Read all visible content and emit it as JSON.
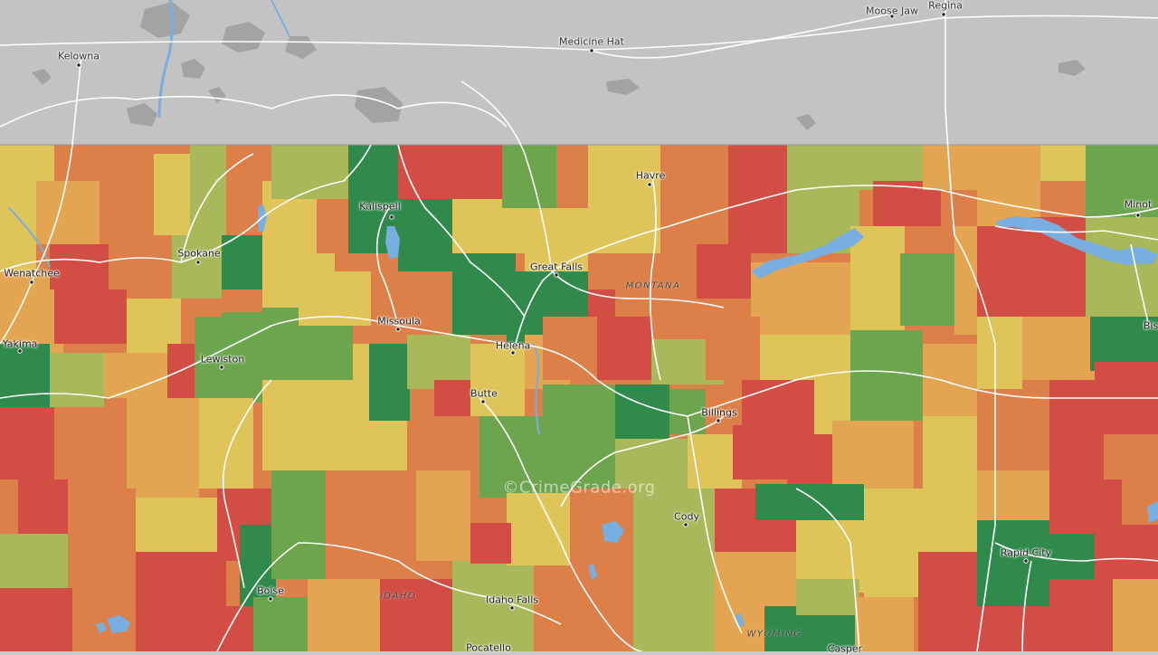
{
  "map": {
    "colors": {
      "canada": "#c3c3c3",
      "lake_canada": "#a3a3a3",
      "water": "#78aee0",
      "road": "#ffffff",
      "grade_a": "#2f8a4c",
      "grade_b": "#6da54f",
      "grade_b2": "#a9b85a",
      "grade_c": "#dfc45a",
      "grade_c2": "#e4a552",
      "grade_d": "#dd7f48",
      "grade_f": "#d24e45"
    },
    "cities": [
      {
        "name": "Kelowna",
        "region": "canada"
      },
      {
        "name": "Medicine Hat",
        "region": "canada"
      },
      {
        "name": "Moose Jaw",
        "region": "canada"
      },
      {
        "name": "Regina",
        "region": "canada"
      },
      {
        "name": "Kalispell",
        "region": "us"
      },
      {
        "name": "Havre",
        "region": "us"
      },
      {
        "name": "Minot",
        "region": "us"
      },
      {
        "name": "Spokane",
        "region": "us"
      },
      {
        "name": "Wenatchee",
        "region": "us"
      },
      {
        "name": "Great Falls",
        "region": "us"
      },
      {
        "name": "Missoula",
        "region": "us"
      },
      {
        "name": "Yakima",
        "region": "us"
      },
      {
        "name": "Helena",
        "region": "us"
      },
      {
        "name": "Lewiston",
        "region": "us"
      },
      {
        "name": "Butte",
        "region": "us"
      },
      {
        "name": "Billings",
        "region": "us"
      },
      {
        "name": "Cody",
        "region": "us"
      },
      {
        "name": "Rapid City",
        "region": "us"
      },
      {
        "name": "Boise",
        "region": "us"
      },
      {
        "name": "Idaho Falls",
        "region": "us"
      },
      {
        "name": "Pocatello",
        "region": "us"
      },
      {
        "name": "Casper",
        "region": "us"
      },
      {
        "name": "Bis",
        "region": "us"
      }
    ],
    "states": [
      "MONTANA",
      "IDAHO",
      "WYOMING"
    ],
    "watermark": "©CrimeGrade.org"
  }
}
